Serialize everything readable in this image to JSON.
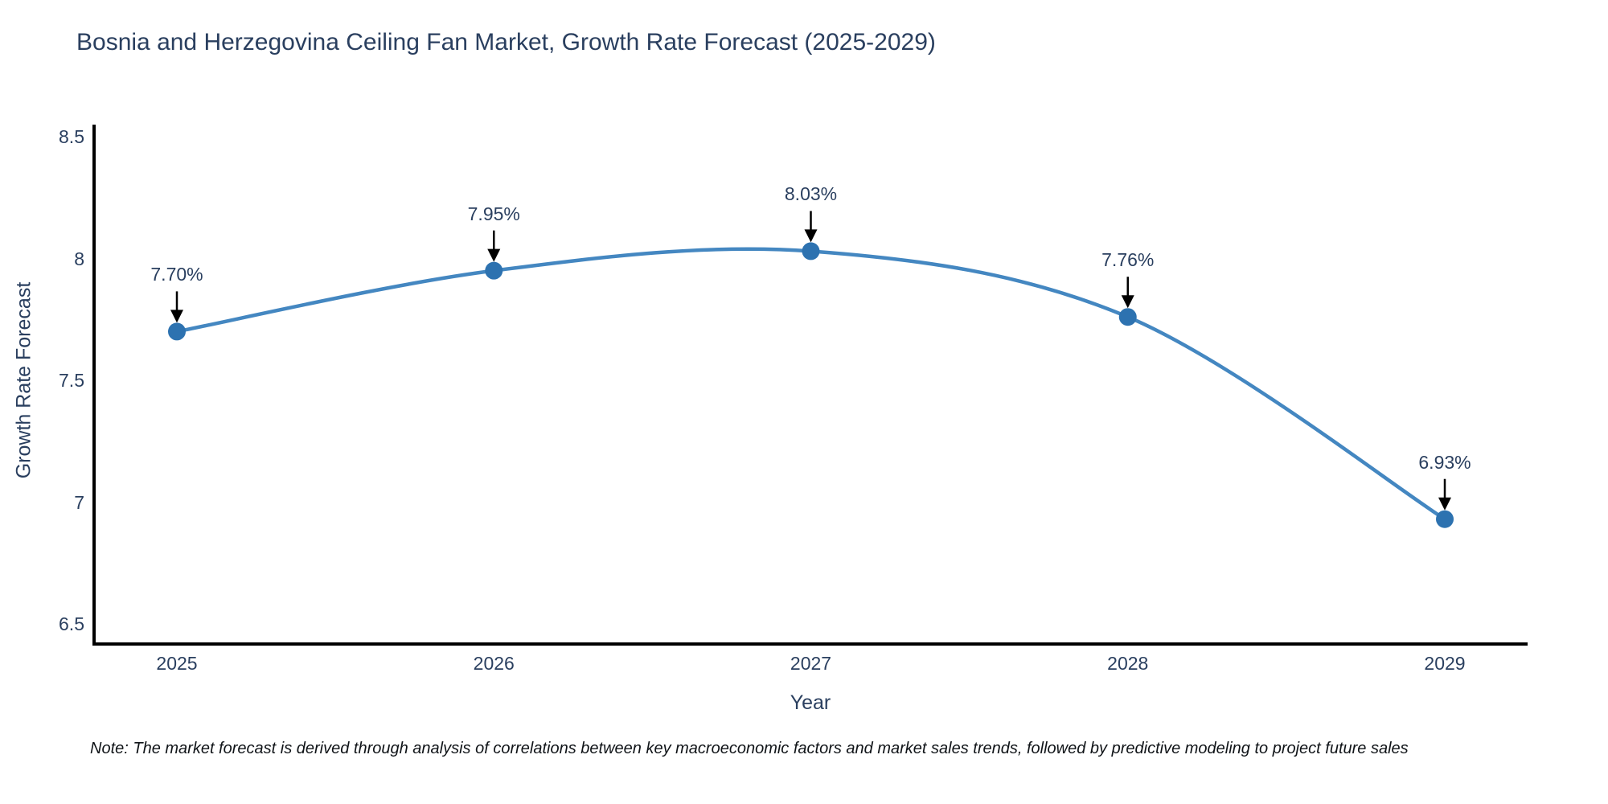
{
  "title": "Bosnia and Herzegovina Ceiling Fan Market, Growth Rate Forecast (2025-2029)",
  "note": "Note: The market forecast is derived through analysis of correlations between key macroeconomic factors and market sales trends, followed by predictive modeling to project future sales",
  "chart_data": {
    "type": "line",
    "title": "Bosnia and Herzegovina Ceiling Fan Market, Growth Rate Forecast (2025-2029)",
    "x": [
      2025,
      2026,
      2027,
      2028,
      2029
    ],
    "x_tick_labels": [
      "2025",
      "2026",
      "2027",
      "2028",
      "2029"
    ],
    "series": [
      {
        "name": "Growth Rate Forecast",
        "values": [
          7.7,
          7.95,
          8.03,
          7.76,
          6.93
        ],
        "point_labels": [
          "7.70%",
          "7.95%",
          "8.03%",
          "7.76%",
          "6.93%"
        ]
      }
    ],
    "xlabel": "Year",
    "ylabel": "Growth Rate Forecast",
    "ylim": [
      6.5,
      8.5
    ],
    "y_tick_labels": [
      "8.5",
      "8",
      "7.5",
      "7",
      "6.5"
    ],
    "y_tick_values": [
      8.5,
      8,
      7.5,
      7,
      6.5
    ],
    "line_shape": "spline",
    "grid": false,
    "legend_position": "none",
    "annotations_have_arrows": true,
    "colors": {
      "line": "#4487c1",
      "marker": "#2d72b0",
      "arrow": "#000000",
      "axis_line": "#000000",
      "title_text": "#2a3f5f",
      "tick_text": "#2a3f5f",
      "note_text": "#101418"
    }
  }
}
